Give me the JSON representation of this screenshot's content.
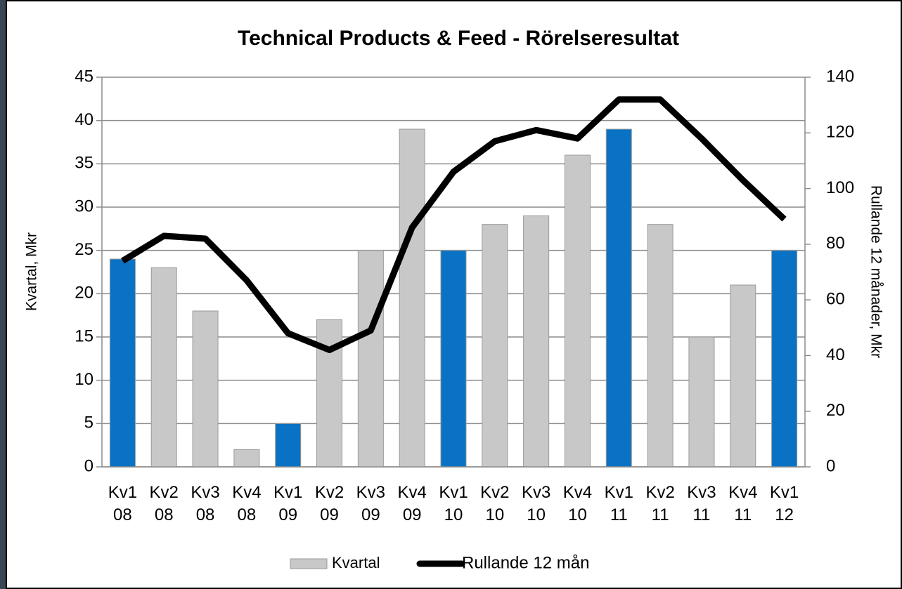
{
  "chart_data": {
    "type": "bar-line",
    "title": "Technical Products & Feed - Rörelseresultat",
    "y_label": "Kvartal, Mkr",
    "y2_label": "Rullande 12 månader, Mkr",
    "categories": [
      "Kv1 08",
      "Kv2 08",
      "Kv3 08",
      "Kv4 08",
      "Kv1 09",
      "Kv2 09",
      "Kv3 09",
      "Kv4 09",
      "Kv1 10",
      "Kv2 10",
      "Kv3 10",
      "Kv4 10",
      "Kv1 11",
      "Kv2 11",
      "Kv3 11",
      "Kv4 11",
      "Kv1 12"
    ],
    "series": [
      {
        "name": "Kvartal",
        "type": "bar",
        "color": "#c8c8c8",
        "values": [
          24,
          23,
          18,
          2,
          5,
          17,
          25,
          39,
          25,
          28,
          29,
          36,
          39,
          28,
          15,
          21,
          25
        ],
        "colors": [
          "#0a72c4",
          "#c8c8c8",
          "#c8c8c8",
          "#c8c8c8",
          "#0a72c4",
          "#c8c8c8",
          "#c8c8c8",
          "#c8c8c8",
          "#0a72c4",
          "#c8c8c8",
          "#c8c8c8",
          "#c8c8c8",
          "#0a72c4",
          "#c8c8c8",
          "#c8c8c8",
          "#c8c8c8",
          "#0a72c4"
        ]
      },
      {
        "name": "Rullande 12 mån",
        "type": "line",
        "color": "#000000",
        "axis": "y2",
        "values": [
          74,
          83,
          82,
          67,
          48,
          42,
          49,
          86,
          106,
          117,
          121,
          118,
          132,
          132,
          118,
          103,
          89
        ]
      }
    ],
    "ylim": [
      0,
      45
    ],
    "yticks": [
      0,
      5,
      10,
      15,
      20,
      25,
      30,
      35,
      40,
      45
    ],
    "y2lim": [
      0,
      140
    ],
    "y2ticks": [
      0,
      20,
      40,
      60,
      80,
      100,
      120,
      140
    ],
    "grid": true,
    "legend": "bottom"
  }
}
